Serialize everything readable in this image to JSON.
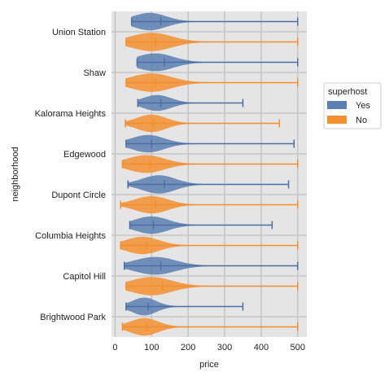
{
  "chart_data": {
    "type": "violin",
    "orientation": "horizontal",
    "xlabel": "price",
    "ylabel": "neighborhood",
    "xlim": [
      -10,
      525
    ],
    "xticks": [
      0,
      100,
      200,
      300,
      400,
      500
    ],
    "grid": true,
    "legend": {
      "title": "superhost",
      "placement": "right",
      "entries": [
        "Yes",
        "No"
      ]
    },
    "colors": {
      "Yes": "#5b7fb0",
      "No": "#f39130",
      "Yes_line": "#4a6fa5",
      "No_line": "#f28e2b",
      "background": "#e5e5e5"
    },
    "categories": [
      "Union Station",
      "Shaw",
      "Kalorama Heights",
      "Edgewood",
      "Dupont Circle",
      "Columbia Heights",
      "Capitol Hill",
      "Brightwood Park"
    ],
    "series": [
      {
        "name": "Yes",
        "violins": [
          {
            "min": 45,
            "max": 500,
            "median": 125,
            "mode": 95,
            "spread": 45,
            "scale": 0.93
          },
          {
            "min": 60,
            "max": 500,
            "median": 135,
            "mode": 110,
            "spread": 50,
            "scale": 0.95
          },
          {
            "min": 62,
            "max": 350,
            "median": 125,
            "mode": 115,
            "spread": 38,
            "scale": 0.85
          },
          {
            "min": 30,
            "max": 490,
            "median": 100,
            "mode": 90,
            "spread": 45,
            "scale": 0.93
          },
          {
            "min": 35,
            "max": 475,
            "median": 135,
            "mode": 120,
            "spread": 45,
            "scale": 0.98
          },
          {
            "min": 40,
            "max": 430,
            "median": 105,
            "mode": 100,
            "spread": 45,
            "scale": 0.93
          },
          {
            "min": 25,
            "max": 500,
            "median": 125,
            "mode": 110,
            "spread": 55,
            "scale": 0.95
          },
          {
            "min": 30,
            "max": 350,
            "median": 90,
            "mode": 80,
            "spread": 33,
            "scale": 0.95
          }
        ]
      },
      {
        "name": "No",
        "violins": [
          {
            "min": 30,
            "max": 500,
            "median": 110,
            "mode": 100,
            "spread": 55,
            "scale": 0.98
          },
          {
            "min": 30,
            "max": 500,
            "median": 110,
            "mode": 100,
            "spread": 55,
            "scale": 0.98
          },
          {
            "min": 28,
            "max": 450,
            "median": 105,
            "mode": 100,
            "spread": 40,
            "scale": 0.93
          },
          {
            "min": 20,
            "max": 500,
            "median": 95,
            "mode": 85,
            "spread": 50,
            "scale": 0.95
          },
          {
            "min": 15,
            "max": 500,
            "median": 110,
            "mode": 100,
            "spread": 45,
            "scale": 0.93
          },
          {
            "min": 15,
            "max": 500,
            "median": 85,
            "mode": 75,
            "spread": 45,
            "scale": 0.93
          },
          {
            "min": 30,
            "max": 500,
            "median": 130,
            "mode": 100,
            "spread": 55,
            "scale": 0.98
          },
          {
            "min": 20,
            "max": 500,
            "median": 85,
            "mode": 80,
            "spread": 38,
            "scale": 0.93
          }
        ]
      }
    ]
  }
}
